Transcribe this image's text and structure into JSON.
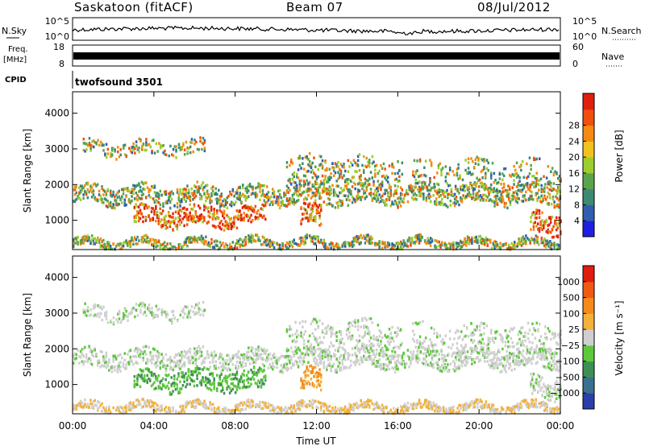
{
  "header": {
    "title": "Saskatoon (fitACF)",
    "beam": "Beam 07",
    "date": "08/Jul/2012"
  },
  "side_labels": {
    "nsky": "N.Sky",
    "freq": "Freq.",
    "freq_unit": "[MHz]",
    "cpid": "CPID",
    "nsearch": "N.Search",
    "nave": "Nave"
  },
  "small_axes": {
    "noise_ticks_left": [
      "10^5",
      "10^0"
    ],
    "noise_ticks_right": [
      "10^5",
      "10^0"
    ],
    "freq_ticks": [
      "18",
      "8"
    ],
    "nave_ticks": [
      "60",
      "0"
    ]
  },
  "cpid_text": "twofsound 3501",
  "x_axis": {
    "label": "Time UT",
    "ticks": [
      "00:00",
      "04:00",
      "08:00",
      "12:00",
      "16:00",
      "20:00",
      "00:00"
    ]
  },
  "chart_data": [
    {
      "type": "heatmap",
      "ylabel": "Slant Range [km]",
      "yticks": [
        1000,
        2000,
        3000,
        4000
      ],
      "ylim": [
        180,
        4600
      ],
      "xlim_hours": [
        0,
        24
      ],
      "colorbar": {
        "label": "Power [dB]",
        "ticks": [
          "4",
          "8",
          "12",
          "16",
          "20",
          "24",
          "28"
        ],
        "colors": [
          "#1f1fe0",
          "#2f5fae",
          "#3d8a74",
          "#5aa44a",
          "#9ccd2d",
          "#f2c21c",
          "#f58a12",
          "#f04f0c",
          "#e0200e"
        ]
      }
    },
    {
      "type": "heatmap",
      "ylabel": "Slant Range [km]",
      "yticks": [
        1000,
        2000,
        3000,
        4000
      ],
      "ylim": [
        180,
        4600
      ],
      "xlim_hours": [
        0,
        24
      ],
      "colorbar": {
        "label": "Velocity [m s⁻¹]",
        "ticks": [
          "1000",
          "500",
          "100",
          "25",
          "−25",
          "−100",
          "−500",
          "−1000"
        ],
        "colors": [
          "#2a3fa8",
          "#3a7090",
          "#3f8f55",
          "#5ec83c",
          "#cfcfcf",
          "#f3b13a",
          "#f58a1a",
          "#f05a12",
          "#e01c10"
        ]
      }
    }
  ]
}
